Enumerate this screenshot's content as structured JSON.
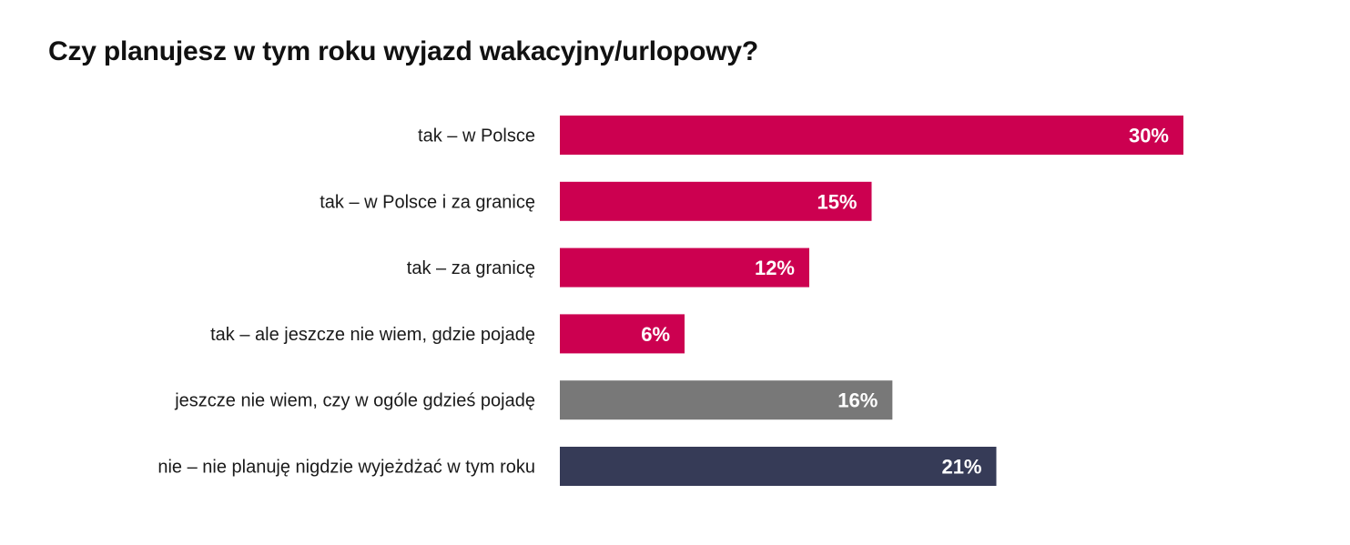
{
  "chart_data": {
    "type": "bar",
    "orientation": "horizontal",
    "title": "Czy planujesz w tym roku wyjazd wakacyjny/urlopowy?",
    "categories": [
      "tak – w Polsce",
      "tak – w Polsce i za granicę",
      "tak – za granicę",
      "tak – ale jeszcze nie wiem, gdzie pojadę",
      "jeszcze nie wiem, czy w ogóle gdzieś pojadę",
      "nie – nie planuję nigdzie wyjeżdżać w tym roku"
    ],
    "values": [
      30,
      15,
      12,
      6,
      16,
      21
    ],
    "value_labels": [
      "30%",
      "15%",
      "12%",
      "6%",
      "16%",
      "21%"
    ],
    "colors": [
      "#cc0050",
      "#cc0050",
      "#cc0050",
      "#cc0050",
      "#787878",
      "#363b57"
    ],
    "unit": "%",
    "xlabel": "",
    "ylabel": "",
    "xlim": [
      0,
      30
    ],
    "grid": false
  }
}
